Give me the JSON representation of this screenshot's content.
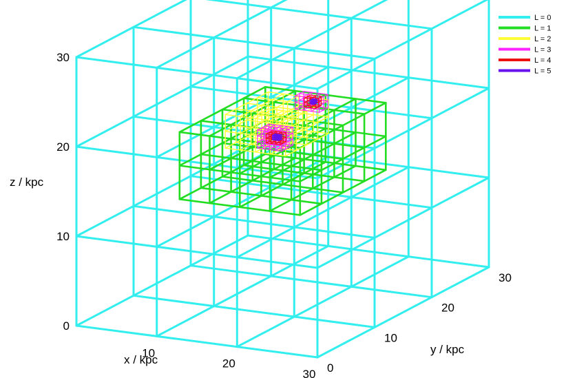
{
  "chart_data": {
    "type": "3d-wireframe",
    "axes": {
      "x": {
        "label": "x / kpc",
        "range": [
          0,
          30
        ],
        "ticks": [
          10,
          20,
          30
        ]
      },
      "y": {
        "label": "y / kpc",
        "range": [
          0,
          30
        ],
        "ticks": [
          0,
          10,
          20,
          30
        ]
      },
      "z": {
        "label": "z / kpc",
        "range": [
          0,
          30
        ],
        "ticks": [
          0,
          10,
          20,
          30
        ]
      }
    },
    "legend_position": "top-right",
    "levels": [
      {
        "name": "L = 0",
        "color": "#33eeee"
      },
      {
        "name": "L = 1",
        "color": "#22dd22"
      },
      {
        "name": "L = 2",
        "color": "#ffff33"
      },
      {
        "name": "L = 3",
        "color": "#ff22ff"
      },
      {
        "name": "L = 4",
        "color": "#ee1111"
      },
      {
        "name": "L = 5",
        "color": "#6611ee"
      }
    ],
    "grids": [
      {
        "level": 0,
        "x": [
          0,
          30
        ],
        "y": [
          0,
          30
        ],
        "z": [
          0,
          30
        ],
        "cells": [
          3,
          3,
          3
        ]
      },
      {
        "level": 1,
        "x": [
          7.5,
          22.5
        ],
        "y": [
          7.5,
          22.5
        ],
        "z": [
          12.5,
          20
        ],
        "cells": [
          4,
          4,
          2
        ]
      },
      {
        "level": 2,
        "x": [
          8.75,
          16.25
        ],
        "y": [
          13.75,
          21.25
        ],
        "z": [
          16.25,
          20
        ],
        "cells": [
          4,
          4,
          2
        ]
      },
      {
        "level": 3,
        "x": [
          11.5,
          14.5
        ],
        "y": [
          15.5,
          17.5
        ],
        "z": [
          16,
          18
        ],
        "cells": [
          4,
          3,
          3
        ]
      },
      {
        "level": 3,
        "x": [
          13,
          16
        ],
        "y": [
          20,
          21.5
        ],
        "z": [
          19,
          20.5
        ],
        "cells": [
          3,
          2,
          2
        ]
      },
      {
        "level": 4,
        "x": [
          12.25,
          14
        ],
        "y": [
          16,
          17
        ],
        "z": [
          16.5,
          17.5
        ],
        "cells": [
          3,
          2,
          2
        ]
      },
      {
        "level": 4,
        "x": [
          14,
          15.4
        ],
        "y": [
          20.2,
          21.2
        ],
        "z": [
          19.3,
          20.3
        ],
        "cells": [
          2,
          2,
          2
        ]
      },
      {
        "level": 5,
        "x": [
          12.8,
          13.6
        ],
        "y": [
          16.3,
          16.8
        ],
        "z": [
          16.8,
          17.3
        ],
        "cells": [
          2,
          2,
          2
        ]
      },
      {
        "level": 5,
        "x": [
          14.5,
          15
        ],
        "y": [
          20.5,
          21
        ],
        "z": [
          19.6,
          20
        ],
        "cells": [
          2,
          2,
          2
        ]
      }
    ]
  }
}
